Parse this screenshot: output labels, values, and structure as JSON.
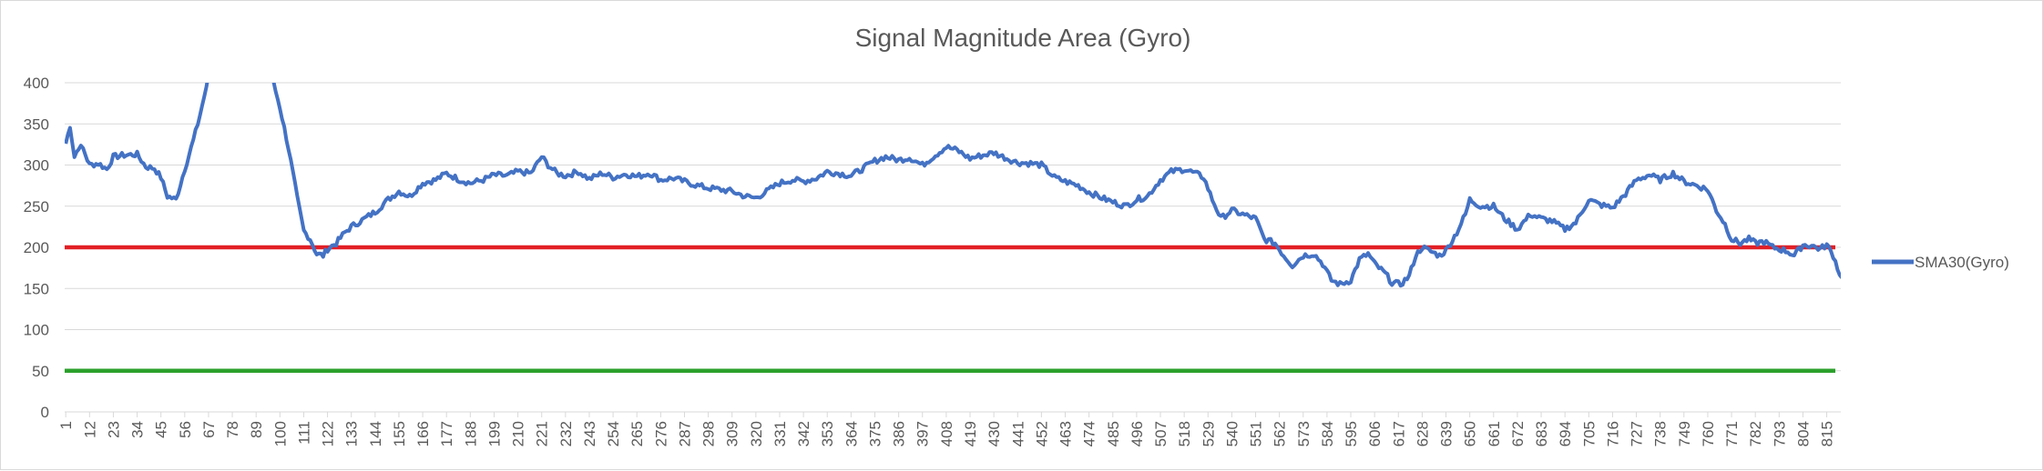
{
  "chart_data": {
    "type": "line",
    "title": "Signal Magnitude Area (Gyro)",
    "xlabel": "",
    "ylabel": "",
    "ylim": [
      0,
      400
    ],
    "yticks": [
      0,
      50,
      100,
      150,
      200,
      250,
      300,
      350,
      400
    ],
    "grid": "horizontal",
    "legend_position": "right",
    "x_count": 821,
    "x_tick_labels": [
      "1",
      "12",
      "23",
      "34",
      "45",
      "56",
      "67",
      "78",
      "89",
      "100",
      "111",
      "122",
      "133",
      "144",
      "155",
      "166",
      "177",
      "188",
      "199",
      "210",
      "221",
      "232",
      "243",
      "254",
      "265",
      "276",
      "287",
      "298",
      "309",
      "320",
      "331",
      "342",
      "353",
      "364",
      "375",
      "386",
      "397",
      "408",
      "419",
      "430",
      "441",
      "452",
      "463",
      "474",
      "485",
      "496",
      "507",
      "518",
      "529",
      "540",
      "551",
      "562",
      "573",
      "584",
      "595",
      "606",
      "617",
      "628",
      "639",
      "650",
      "661",
      "672",
      "683",
      "694",
      "705",
      "716",
      "727",
      "738",
      "749",
      "760",
      "771",
      "782",
      "793",
      "804",
      "815"
    ],
    "series": [
      {
        "name": "SMA30(Gyro)",
        "color": "#4472c4",
        "keypoints": [
          [
            1,
            326
          ],
          [
            3,
            348
          ],
          [
            5,
            310
          ],
          [
            7,
            322
          ],
          [
            9,
            320
          ],
          [
            12,
            300
          ],
          [
            16,
            302
          ],
          [
            20,
            295
          ],
          [
            23,
            310
          ],
          [
            28,
            312
          ],
          [
            34,
            313
          ],
          [
            38,
            298
          ],
          [
            42,
            296
          ],
          [
            45,
            285
          ],
          [
            48,
            262
          ],
          [
            52,
            258
          ],
          [
            56,
            295
          ],
          [
            60,
            330
          ],
          [
            63,
            360
          ],
          [
            66,
            395
          ],
          [
            67,
            410
          ],
          [
            95,
            410
          ],
          [
            97,
            400
          ],
          [
            100,
            370
          ],
          [
            104,
            320
          ],
          [
            108,
            260
          ],
          [
            111,
            220
          ],
          [
            114,
            210
          ],
          [
            117,
            192
          ],
          [
            120,
            190
          ],
          [
            122,
            198
          ],
          [
            126,
            205
          ],
          [
            130,
            218
          ],
          [
            133,
            225
          ],
          [
            138,
            233
          ],
          [
            144,
            243
          ],
          [
            150,
            258
          ],
          [
            155,
            268
          ],
          [
            160,
            262
          ],
          [
            166,
            278
          ],
          [
            172,
            282
          ],
          [
            177,
            290
          ],
          [
            183,
            282
          ],
          [
            188,
            278
          ],
          [
            194,
            282
          ],
          [
            199,
            288
          ],
          [
            205,
            287
          ],
          [
            210,
            292
          ],
          [
            216,
            290
          ],
          [
            221,
            310
          ],
          [
            224,
            300
          ],
          [
            228,
            290
          ],
          [
            232,
            287
          ],
          [
            238,
            292
          ],
          [
            243,
            283
          ],
          [
            249,
            290
          ],
          [
            254,
            285
          ],
          [
            260,
            289
          ],
          [
            265,
            286
          ],
          [
            271,
            290
          ],
          [
            276,
            282
          ],
          [
            282,
            284
          ],
          [
            287,
            280
          ],
          [
            293,
            275
          ],
          [
            298,
            272
          ],
          [
            304,
            270
          ],
          [
            309,
            268
          ],
          [
            315,
            262
          ],
          [
            320,
            260
          ],
          [
            325,
            268
          ],
          [
            331,
            278
          ],
          [
            337,
            282
          ],
          [
            342,
            280
          ],
          [
            348,
            284
          ],
          [
            353,
            292
          ],
          [
            358,
            290
          ],
          [
            364,
            287
          ],
          [
            369,
            295
          ],
          [
            375,
            305
          ],
          [
            380,
            310
          ],
          [
            386,
            306
          ],
          [
            391,
            309
          ],
          [
            397,
            300
          ],
          [
            402,
            310
          ],
          [
            408,
            322
          ],
          [
            413,
            318
          ],
          [
            419,
            308
          ],
          [
            425,
            312
          ],
          [
            430,
            315
          ],
          [
            436,
            308
          ],
          [
            441,
            303
          ],
          [
            447,
            302
          ],
          [
            452,
            300
          ],
          [
            458,
            285
          ],
          [
            463,
            280
          ],
          [
            469,
            275
          ],
          [
            474,
            267
          ],
          [
            480,
            260
          ],
          [
            485,
            255
          ],
          [
            491,
            250
          ],
          [
            496,
            258
          ],
          [
            501,
            262
          ],
          [
            507,
            282
          ],
          [
            512,
            292
          ],
          [
            518,
            295
          ],
          [
            523,
            290
          ],
          [
            527,
            285
          ],
          [
            531,
            258
          ],
          [
            535,
            235
          ],
          [
            540,
            245
          ],
          [
            545,
            240
          ],
          [
            551,
            235
          ],
          [
            555,
            210
          ],
          [
            560,
            205
          ],
          [
            564,
            190
          ],
          [
            568,
            178
          ],
          [
            573,
            190
          ],
          [
            578,
            192
          ],
          [
            582,
            180
          ],
          [
            586,
            160
          ],
          [
            590,
            155
          ],
          [
            595,
            160
          ],
          [
            599,
            185
          ],
          [
            603,
            192
          ],
          [
            606,
            180
          ],
          [
            611,
            168
          ],
          [
            614,
            157
          ],
          [
            618,
            155
          ],
          [
            622,
            165
          ],
          [
            625,
            190
          ],
          [
            628,
            200
          ],
          [
            632,
            195
          ],
          [
            636,
            190
          ],
          [
            639,
            196
          ],
          [
            644,
            218
          ],
          [
            648,
            240
          ],
          [
            650,
            258
          ],
          [
            655,
            250
          ],
          [
            661,
            250
          ],
          [
            666,
            235
          ],
          [
            672,
            222
          ],
          [
            678,
            240
          ],
          [
            683,
            235
          ],
          [
            688,
            232
          ],
          [
            694,
            222
          ],
          [
            699,
            230
          ],
          [
            705,
            258
          ],
          [
            710,
            252
          ],
          [
            716,
            248
          ],
          [
            722,
            265
          ],
          [
            727,
            282
          ],
          [
            733,
            288
          ],
          [
            738,
            282
          ],
          [
            744,
            290
          ],
          [
            749,
            280
          ],
          [
            755,
            275
          ],
          [
            760,
            270
          ],
          [
            764,
            245
          ],
          [
            768,
            228
          ],
          [
            771,
            210
          ],
          [
            775,
            205
          ],
          [
            779,
            210
          ],
          [
            782,
            205
          ],
          [
            786,
            207
          ],
          [
            790,
            200
          ],
          [
            793,
            198
          ],
          [
            797,
            195
          ],
          [
            800,
            190
          ],
          [
            804,
            203
          ],
          [
            808,
            202
          ],
          [
            812,
            198
          ],
          [
            815,
            203
          ],
          [
            818,
            190
          ],
          [
            821,
            168
          ],
          [
            822,
            163
          ]
        ]
      }
    ],
    "reference_lines": [
      {
        "value": 200,
        "color": "#e21f26"
      },
      {
        "value": 50,
        "color": "#2ca02c"
      }
    ]
  }
}
